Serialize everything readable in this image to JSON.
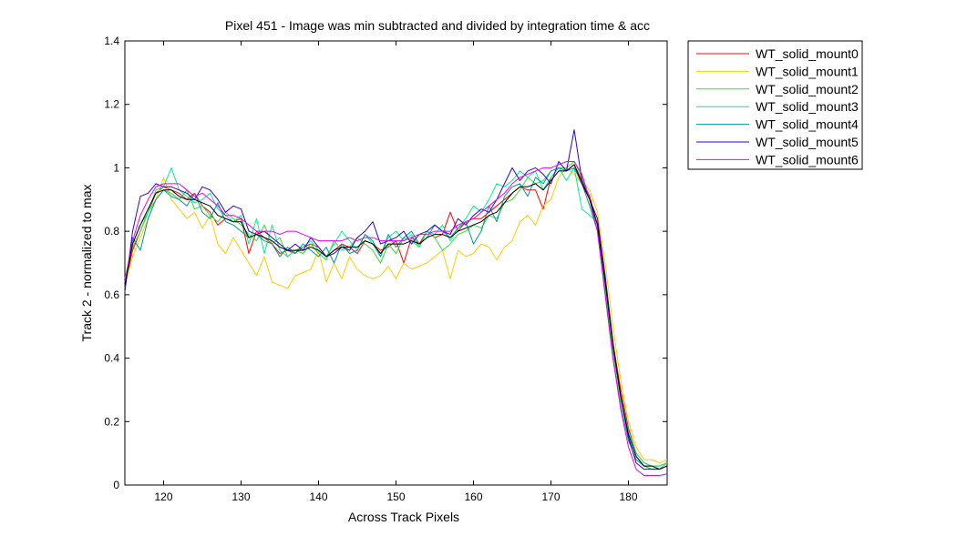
{
  "chart_data": {
    "type": "line",
    "title": "Pixel 451 - Image was min subtracted and divided by integration time & acc",
    "xlabel": "Across Track Pixels",
    "ylabel": "Track 2 - normalized to max",
    "xlim": [
      115,
      185
    ],
    "ylim": [
      0,
      1.4
    ],
    "xticks": [
      120,
      130,
      140,
      150,
      160,
      170,
      180
    ],
    "yticks": [
      0,
      0.2,
      0.4,
      0.6,
      0.8,
      1,
      1.2,
      1.4
    ],
    "ytick_labels": [
      "0",
      "0.2",
      "0.4",
      "0.6",
      "0.8",
      "1",
      "1.2",
      "1.4"
    ],
    "grid": false,
    "legend_position": "outside-top-right",
    "x": [
      115,
      116,
      117,
      118,
      119,
      120,
      121,
      122,
      123,
      124,
      125,
      126,
      127,
      128,
      129,
      130,
      131,
      132,
      133,
      134,
      135,
      136,
      137,
      138,
      139,
      140,
      141,
      142,
      143,
      144,
      145,
      146,
      147,
      148,
      149,
      150,
      151,
      152,
      153,
      154,
      155,
      156,
      157,
      158,
      159,
      160,
      161,
      162,
      163,
      164,
      165,
      166,
      167,
      168,
      169,
      170,
      171,
      172,
      173,
      174,
      175,
      176,
      177,
      178,
      179,
      180,
      181,
      182,
      183,
      184,
      185
    ],
    "series": [
      {
        "name": "WT_solid_mount0",
        "color": "#ff0000",
        "values": [
          0.63,
          0.74,
          0.8,
          0.86,
          0.92,
          0.94,
          0.93,
          0.92,
          0.9,
          0.92,
          0.88,
          0.86,
          0.82,
          0.84,
          0.83,
          0.84,
          0.73,
          0.8,
          0.78,
          0.76,
          0.73,
          0.74,
          0.73,
          0.75,
          0.76,
          0.75,
          0.72,
          0.74,
          0.76,
          0.75,
          0.73,
          0.77,
          0.76,
          0.74,
          0.75,
          0.77,
          0.7,
          0.78,
          0.76,
          0.8,
          0.78,
          0.79,
          0.86,
          0.8,
          0.83,
          0.84,
          0.84,
          0.86,
          0.88,
          0.9,
          0.92,
          0.94,
          0.93,
          0.93,
          0.87,
          0.97,
          1.0,
          0.99,
          1.01,
          0.96,
          0.91,
          0.82,
          0.65,
          0.45,
          0.3,
          0.18,
          0.1,
          0.07,
          0.06,
          0.06,
          0.07
        ]
      },
      {
        "name": "WT_solid_mount1",
        "color": "#ffcc00",
        "values": [
          0.63,
          0.72,
          0.78,
          0.84,
          0.9,
          0.97,
          0.9,
          0.87,
          0.84,
          0.86,
          0.81,
          0.85,
          0.76,
          0.73,
          0.78,
          0.74,
          0.7,
          0.66,
          0.72,
          0.64,
          0.63,
          0.62,
          0.66,
          0.67,
          0.68,
          0.74,
          0.64,
          0.7,
          0.65,
          0.72,
          0.68,
          0.66,
          0.65,
          0.66,
          0.69,
          0.65,
          0.7,
          0.68,
          0.69,
          0.7,
          0.72,
          0.74,
          0.65,
          0.74,
          0.72,
          0.73,
          0.76,
          0.75,
          0.71,
          0.75,
          0.77,
          0.83,
          0.85,
          0.82,
          0.88,
          0.9,
          0.97,
          1.0,
          0.98,
          0.95,
          0.93,
          0.86,
          0.7,
          0.5,
          0.33,
          0.2,
          0.12,
          0.08,
          0.08,
          0.07,
          0.08
        ]
      },
      {
        "name": "WT_solid_mount2",
        "color": "#33dd33",
        "values": [
          0.64,
          0.75,
          0.8,
          0.86,
          0.9,
          0.93,
          0.92,
          0.9,
          0.93,
          0.87,
          0.88,
          0.85,
          0.83,
          0.86,
          0.84,
          0.82,
          0.79,
          0.77,
          0.82,
          0.76,
          0.78,
          0.72,
          0.74,
          0.73,
          0.76,
          0.73,
          0.71,
          0.77,
          0.74,
          0.75,
          0.78,
          0.76,
          0.74,
          0.7,
          0.76,
          0.73,
          0.78,
          0.77,
          0.75,
          0.8,
          0.78,
          0.74,
          0.76,
          0.79,
          0.8,
          0.82,
          0.81,
          0.85,
          0.84,
          0.89,
          0.9,
          0.93,
          0.97,
          0.95,
          0.96,
          0.99,
          1.0,
          1.0,
          1.02,
          0.97,
          0.9,
          0.8,
          0.62,
          0.42,
          0.27,
          0.16,
          0.09,
          0.06,
          0.06,
          0.05,
          0.07
        ]
      },
      {
        "name": "WT_solid_mount3",
        "color": "#00ee99",
        "values": [
          0.65,
          0.76,
          0.82,
          0.86,
          0.93,
          0.94,
          1.0,
          0.93,
          0.91,
          0.89,
          0.9,
          0.92,
          0.87,
          0.85,
          0.83,
          0.85,
          0.76,
          0.84,
          0.73,
          0.82,
          0.74,
          0.72,
          0.74,
          0.75,
          0.77,
          0.74,
          0.72,
          0.76,
          0.8,
          0.77,
          0.74,
          0.79,
          0.76,
          0.72,
          0.78,
          0.8,
          0.77,
          0.79,
          0.75,
          0.8,
          0.79,
          0.82,
          0.77,
          0.81,
          0.84,
          0.88,
          0.86,
          0.9,
          0.95,
          0.94,
          0.96,
          0.99,
          0.97,
          0.99,
          0.93,
          0.97,
          1.0,
          0.96,
          1.0,
          0.87,
          0.85,
          0.83,
          0.64,
          0.44,
          0.28,
          0.17,
          0.1,
          0.07,
          0.06,
          0.06,
          0.07
        ]
      },
      {
        "name": "WT_solid_mount4",
        "color": "#009999",
        "values": [
          0.62,
          0.78,
          0.74,
          0.84,
          0.9,
          0.93,
          0.91,
          0.9,
          0.88,
          0.92,
          0.86,
          0.84,
          0.89,
          0.83,
          0.82,
          0.8,
          0.78,
          0.79,
          0.77,
          0.76,
          0.72,
          0.75,
          0.73,
          0.76,
          0.74,
          0.72,
          0.75,
          0.7,
          0.76,
          0.73,
          0.74,
          0.79,
          0.77,
          0.72,
          0.79,
          0.75,
          0.78,
          0.8,
          0.76,
          0.78,
          0.82,
          0.8,
          0.78,
          0.81,
          0.83,
          0.76,
          0.8,
          0.88,
          0.83,
          0.91,
          0.94,
          0.95,
          0.91,
          0.97,
          0.95,
          0.99,
          1.0,
          0.99,
          1.0,
          0.95,
          0.88,
          0.8,
          0.6,
          0.4,
          0.25,
          0.14,
          0.08,
          0.06,
          0.05,
          0.05,
          0.06
        ]
      },
      {
        "name": "WT_solid_mount5",
        "color": "#3300cc",
        "values": [
          0.61,
          0.8,
          0.91,
          0.92,
          0.95,
          0.94,
          0.94,
          0.93,
          0.92,
          0.9,
          0.94,
          0.93,
          0.9,
          0.86,
          0.88,
          0.87,
          0.8,
          0.79,
          0.8,
          0.78,
          0.76,
          0.74,
          0.76,
          0.74,
          0.78,
          0.75,
          0.72,
          0.73,
          0.75,
          0.74,
          0.78,
          0.8,
          0.83,
          0.76,
          0.77,
          0.78,
          0.8,
          0.76,
          0.79,
          0.8,
          0.82,
          0.8,
          0.79,
          0.84,
          0.82,
          0.85,
          0.87,
          0.86,
          0.9,
          0.95,
          1.0,
          0.96,
          0.99,
          1.0,
          0.98,
          0.95,
          1.02,
          0.99,
          1.12,
          0.96,
          0.9,
          0.84,
          0.66,
          0.45,
          0.28,
          0.15,
          0.07,
          0.05,
          0.05,
          0.05,
          0.06
        ]
      },
      {
        "name": "WT_solid_mount6",
        "color": "#ee00ee",
        "values": [
          0.64,
          0.77,
          0.85,
          0.9,
          0.94,
          0.95,
          0.95,
          0.95,
          0.93,
          0.91,
          0.92,
          0.9,
          0.88,
          0.85,
          0.85,
          0.84,
          0.82,
          0.8,
          0.8,
          0.8,
          0.79,
          0.8,
          0.8,
          0.79,
          0.78,
          0.77,
          0.77,
          0.77,
          0.77,
          0.78,
          0.77,
          0.78,
          0.78,
          0.77,
          0.77,
          0.77,
          0.77,
          0.78,
          0.79,
          0.79,
          0.8,
          0.8,
          0.8,
          0.82,
          0.83,
          0.84,
          0.86,
          0.88,
          0.9,
          0.92,
          0.95,
          0.97,
          0.98,
          0.99,
          1.0,
          1.0,
          1.01,
          1.02,
          1.02,
          0.98,
          0.9,
          0.8,
          0.6,
          0.4,
          0.24,
          0.12,
          0.05,
          0.03,
          0.03,
          0.03,
          0.035
        ]
      },
      {
        "name": "",
        "color": "#000000",
        "values": [
          0.63,
          0.76,
          0.82,
          0.87,
          0.92,
          0.93,
          0.93,
          0.91,
          0.9,
          0.9,
          0.89,
          0.88,
          0.85,
          0.84,
          0.83,
          0.83,
          0.78,
          0.79,
          0.78,
          0.77,
          0.75,
          0.74,
          0.74,
          0.74,
          0.75,
          0.74,
          0.72,
          0.74,
          0.75,
          0.75,
          0.75,
          0.77,
          0.76,
          0.73,
          0.76,
          0.76,
          0.76,
          0.77,
          0.76,
          0.78,
          0.79,
          0.79,
          0.78,
          0.8,
          0.81,
          0.82,
          0.83,
          0.85,
          0.86,
          0.89,
          0.92,
          0.94,
          0.94,
          0.95,
          0.93,
          0.96,
          0.99,
          0.99,
          1.01,
          0.95,
          0.9,
          0.82,
          0.64,
          0.44,
          0.28,
          0.16,
          0.09,
          0.06,
          0.06,
          0.05,
          0.06
        ]
      }
    ]
  }
}
